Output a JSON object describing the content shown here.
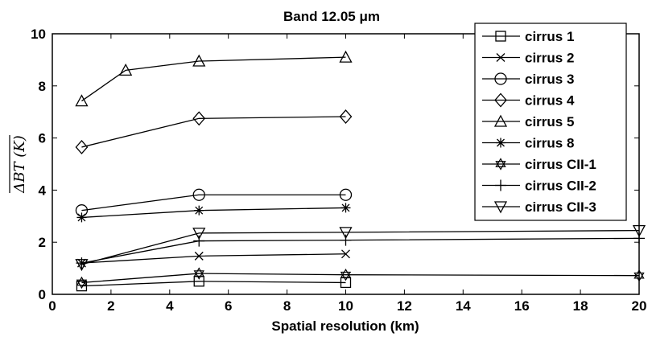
{
  "chart_data": {
    "type": "line",
    "title": "Band 12.05 μm",
    "xlabel": "Spatial resolution (km)",
    "ylabel": "ΔBT (K)",
    "xlim": [
      0,
      20
    ],
    "ylim": [
      0,
      10
    ],
    "xticks": [
      0,
      2,
      4,
      6,
      8,
      10,
      12,
      14,
      16,
      18,
      20
    ],
    "yticks": [
      0,
      2,
      4,
      6,
      8,
      10
    ],
    "grid": false,
    "legend_position": "top-right",
    "series": [
      {
        "name": "cirrus 1",
        "marker": "square",
        "x": [
          1,
          5,
          10
        ],
        "y": [
          0.32,
          0.5,
          0.45
        ]
      },
      {
        "name": "cirrus 2",
        "marker": "x",
        "x": [
          1,
          5,
          10
        ],
        "y": [
          1.2,
          1.47,
          1.55
        ]
      },
      {
        "name": "cirrus 3",
        "marker": "circle",
        "x": [
          1,
          5,
          10
        ],
        "y": [
          3.22,
          3.82,
          3.82
        ]
      },
      {
        "name": "cirrus 4",
        "marker": "diamond",
        "x": [
          1,
          5,
          10
        ],
        "y": [
          5.65,
          6.75,
          6.82
        ]
      },
      {
        "name": "cirrus 5",
        "marker": "triangle-up",
        "x": [
          1,
          2.5,
          5,
          10
        ],
        "y": [
          7.42,
          8.6,
          8.95,
          9.1
        ]
      },
      {
        "name": "cirrus 8",
        "marker": "asterisk",
        "x": [
          1,
          5,
          10
        ],
        "y": [
          2.95,
          3.22,
          3.32
        ]
      },
      {
        "name": "cirrus CII-1",
        "marker": "hexagram",
        "x": [
          1,
          5,
          10,
          20
        ],
        "y": [
          0.45,
          0.8,
          0.75,
          0.72
        ]
      },
      {
        "name": "cirrus CII-2",
        "marker": "plus",
        "x": [
          1,
          5,
          10,
          20
        ],
        "y": [
          1.2,
          2.05,
          2.08,
          2.15
        ]
      },
      {
        "name": "cirrus CII-3",
        "marker": "triangle-down",
        "x": [
          1,
          5,
          10,
          20
        ],
        "y": [
          1.15,
          2.35,
          2.38,
          2.45
        ]
      }
    ]
  }
}
